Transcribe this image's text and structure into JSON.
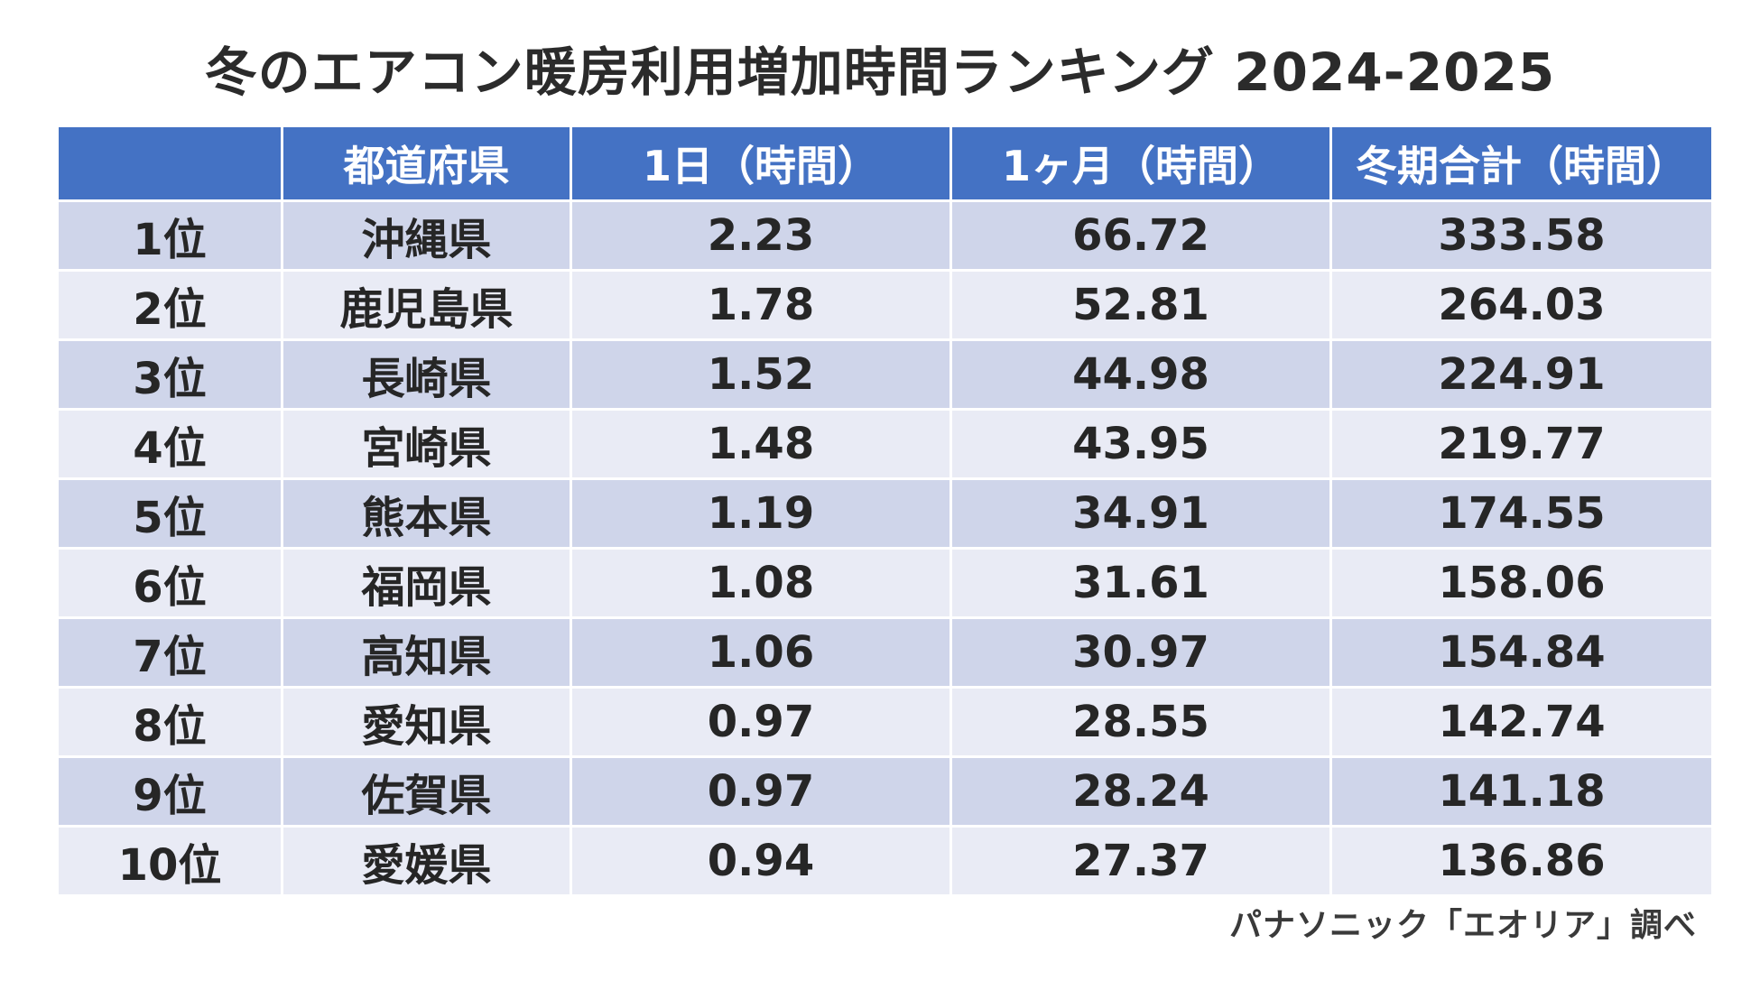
{
  "title": "冬のエアコン暖房利用増加時間ランキング  2024-2025",
  "source": "パナソニック「エオリア」調べ",
  "colors": {
    "header_bg": "#4472c4",
    "header_text": "#ffffff",
    "row_odd_bg": "#cfd5ea",
    "row_even_bg": "#e9ebf5"
  },
  "chart_data": {
    "type": "table",
    "title": "冬のエアコン暖房利用増加時間ランキング  2024-2025",
    "columns": [
      "",
      "都道府県",
      "1日（時間）",
      "1ヶ月（時間）",
      "冬期合計（時間）"
    ],
    "rows": [
      [
        "1位",
        "沖縄県",
        "2.23",
        "66.72",
        "333.58"
      ],
      [
        "2位",
        "鹿児島県",
        "1.78",
        "52.81",
        "264.03"
      ],
      [
        "3位",
        "長崎県",
        "1.52",
        "44.98",
        "224.91"
      ],
      [
        "4位",
        "宮崎県",
        "1.48",
        "43.95",
        "219.77"
      ],
      [
        "5位",
        "熊本県",
        "1.19",
        "34.91",
        "174.55"
      ],
      [
        "6位",
        "福岡県",
        "1.08",
        "31.61",
        "158.06"
      ],
      [
        "7位",
        "高知県",
        "1.06",
        "30.97",
        "154.84"
      ],
      [
        "8位",
        "愛知県",
        "0.97",
        "28.55",
        "142.74"
      ],
      [
        "9位",
        "佐賀県",
        "0.97",
        "28.24",
        "141.18"
      ],
      [
        "10位",
        "愛媛県",
        "0.94",
        "27.37",
        "136.86"
      ]
    ]
  }
}
